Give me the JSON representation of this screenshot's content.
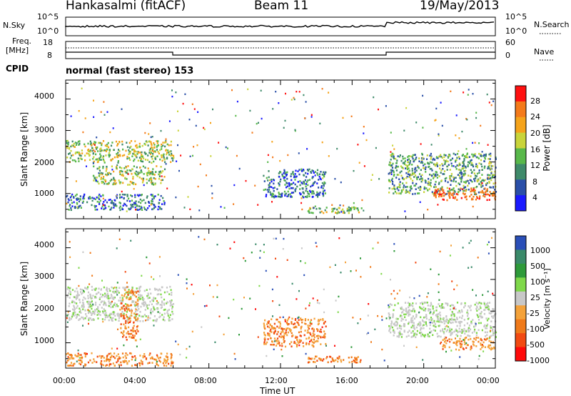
{
  "header": {
    "station": "Hankasalmi (fitACF)",
    "beam": "Beam 11",
    "date": "19/May/2013"
  },
  "panels": {
    "noise": {
      "left_label": "N.Sky",
      "right_label": "N.Search",
      "left_ticks": [
        "10^5",
        "10^0"
      ],
      "right_ticks": [
        "10^5",
        "10^0"
      ],
      "right_legend_style": "dotted"
    },
    "freq": {
      "left_label_1": "Freq.",
      "left_label_2": "[MHz]",
      "right_label": "Nave",
      "left_ticks": [
        "18",
        "8"
      ],
      "right_ticks": [
        "60",
        "0"
      ],
      "right_legend_style": "dotted"
    },
    "cpid": {
      "label": "CPID",
      "value": "normal (fast stereo) 153"
    }
  },
  "chart_data": [
    {
      "type": "heatmap",
      "title": "",
      "xlabel": "",
      "ylabel": "Slant Range [km]",
      "x_range": [
        "00:00",
        "00:00"
      ],
      "ylim": [
        200,
        4600
      ],
      "yticks": [
        1000,
        2000,
        3000,
        4000
      ],
      "colorbar": {
        "label": "Power [dB]",
        "ticks": [
          "4",
          "8",
          "12",
          "16",
          "20",
          "24",
          "28"
        ],
        "colors": [
          "#1a1aff",
          "#2a4fa8",
          "#3f8a6a",
          "#58b84a",
          "#c9d43a",
          "#f5a31a",
          "#f47a1a",
          "#ff1010"
        ]
      },
      "features": [
        {
          "x": [
            "00:00",
            "06:00"
          ],
          "range_km": [
            2000,
            2700
          ],
          "level": "16-24 dB"
        },
        {
          "x": [
            "01:30",
            "05:30"
          ],
          "range_km": [
            1300,
            1900
          ],
          "level": "16-24 dB"
        },
        {
          "x": [
            "00:00",
            "05:30"
          ],
          "range_km": [
            500,
            1000
          ],
          "level": "4-16 dB"
        },
        {
          "x": [
            "11:00",
            "14:30"
          ],
          "range_km": [
            900,
            1800
          ],
          "level": "4-16 dB"
        },
        {
          "x": [
            "13:30",
            "16:30"
          ],
          "range_km": [
            400,
            600
          ],
          "level": "16-24 dB"
        },
        {
          "x": [
            "18:00",
            "24:00"
          ],
          "range_km": [
            1000,
            2300
          ],
          "level": "12-20 dB"
        },
        {
          "x": [
            "20:30",
            "24:00"
          ],
          "range_km": [
            800,
            1200
          ],
          "level": "24-28 dB"
        }
      ]
    },
    {
      "type": "heatmap",
      "title": "",
      "xlabel": "Time UT",
      "ylabel": "Slant Range [km]",
      "x_range": [
        "00:00",
        "00:00"
      ],
      "xticks": [
        "00:00",
        "04:00",
        "08:00",
        "12:00",
        "16:00",
        "20:00",
        "00:00"
      ],
      "ylim": [
        200,
        4600
      ],
      "yticks": [
        1000,
        2000,
        3000,
        4000
      ],
      "colorbar": {
        "label": "Velocity [m s⁻¹]",
        "ticks": [
          "1000",
          "500",
          "100",
          "25",
          "-25",
          "-100",
          "-500",
          "-1000"
        ],
        "colors": [
          "#2a4fb8",
          "#3a8a6a",
          "#2e9a3a",
          "#7fd84a",
          "#c8c8c8",
          "#f4a23a",
          "#f07a1a",
          "#f24a12",
          "#ff0a0a"
        ]
      },
      "features": [
        {
          "x": [
            "00:00",
            "06:00"
          ],
          "range_km": [
            1700,
            2800
          ],
          "level": "-25 to 25 m/s"
        },
        {
          "x": [
            "03:00",
            "04:00"
          ],
          "range_km": [
            1100,
            2700
          ],
          "level": "-100 to -500 m/s"
        },
        {
          "x": [
            "00:00",
            "06:00"
          ],
          "range_km": [
            300,
            700
          ],
          "level": "-100 to -500 m/s"
        },
        {
          "x": [
            "11:00",
            "14:30"
          ],
          "range_km": [
            900,
            1800
          ],
          "level": "-100 to -500 m/s"
        },
        {
          "x": [
            "13:30",
            "16:30"
          ],
          "range_km": [
            400,
            600
          ],
          "level": "-100 to -500 m/s"
        },
        {
          "x": [
            "18:00",
            "24:00"
          ],
          "range_km": [
            1200,
            2300
          ],
          "level": "-25 to 25 m/s"
        },
        {
          "x": [
            "21:00",
            "24:00"
          ],
          "range_km": [
            800,
            1200
          ],
          "level": "-100 to -500 m/s"
        }
      ]
    }
  ]
}
